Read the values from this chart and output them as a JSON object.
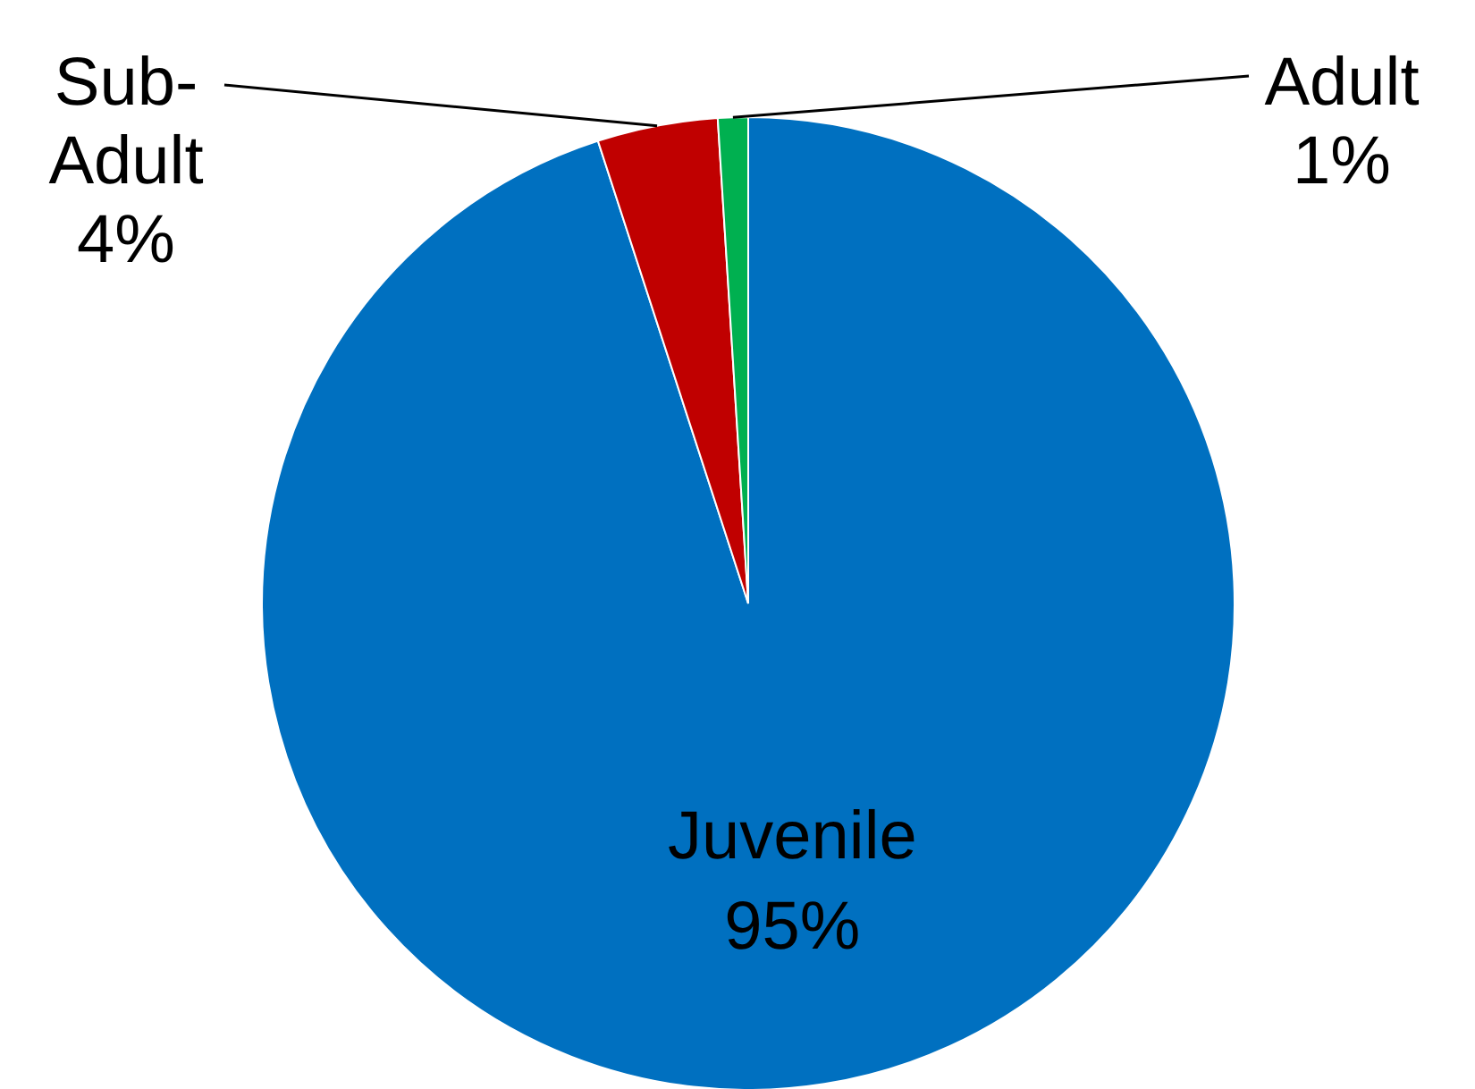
{
  "chart_data": {
    "type": "pie",
    "categories": [
      "Juvenile",
      "Sub-Adult",
      "Adult"
    ],
    "values": [
      95,
      4,
      1
    ],
    "colors": [
      "#0070c0",
      "#c00000",
      "#00b050"
    ],
    "value_labels": [
      "95%",
      "4%",
      "1%"
    ]
  }
}
